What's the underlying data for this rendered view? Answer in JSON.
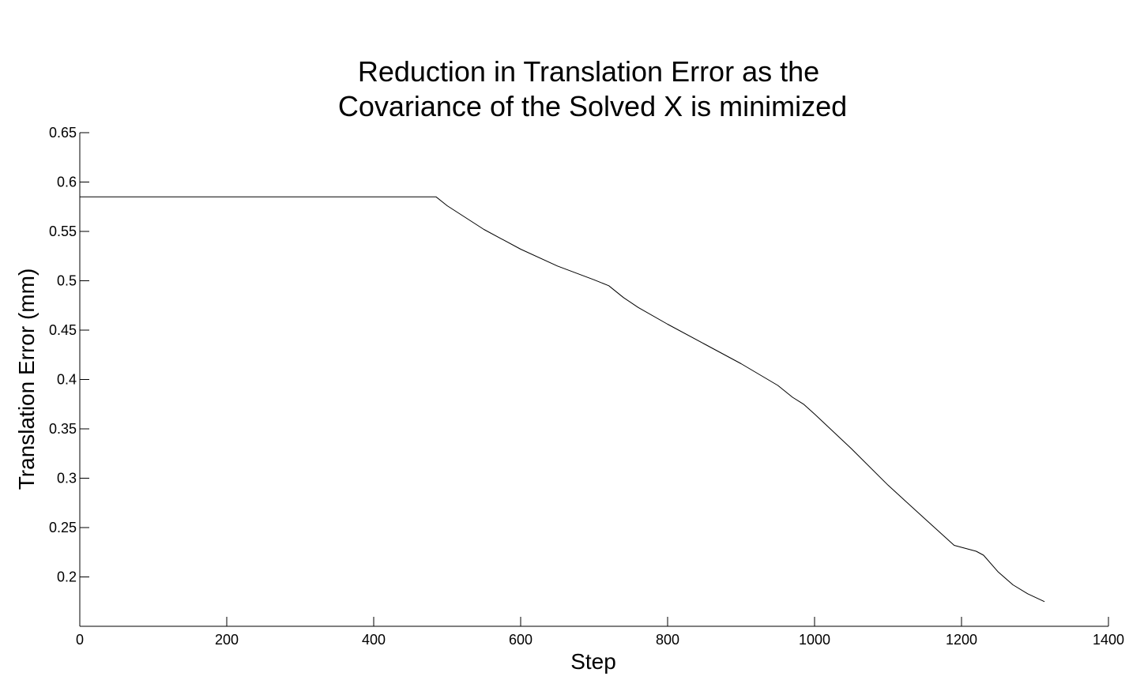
{
  "chart_data": {
    "type": "line",
    "title": [
      "Reduction in Translation Error as the",
      "Covariance of the Solved X is minimized"
    ],
    "xlabel": "Step",
    "ylabel": "Translation Error (mm)",
    "xlim": [
      0,
      1400
    ],
    "ylim": [
      0.15,
      0.65
    ],
    "xticks": [
      0,
      200,
      400,
      600,
      800,
      1000,
      1200,
      1400
    ],
    "xtick_labels": [
      "0",
      "200",
      "400",
      "600",
      "800",
      "1000",
      "1200",
      "1400"
    ],
    "yticks": [
      0.2,
      0.25,
      0.3,
      0.35,
      0.4,
      0.45,
      0.5,
      0.55,
      0.6,
      0.65
    ],
    "ytick_labels": [
      "0.2",
      "0.25",
      "0.3",
      "0.35",
      "0.4",
      "0.45",
      "0.5",
      "0.55",
      "0.6",
      "0.65"
    ],
    "grid": false,
    "series": [
      {
        "color": "#000000",
        "x": [
          0,
          100,
          200,
          300,
          400,
          485,
          500,
          550,
          600,
          650,
          700,
          720,
          740,
          760,
          800,
          850,
          900,
          950,
          970,
          985,
          1000,
          1050,
          1100,
          1150,
          1190,
          1200,
          1220,
          1230,
          1250,
          1270,
          1290,
          1313
        ],
        "y": [
          0.585,
          0.585,
          0.585,
          0.585,
          0.585,
          0.585,
          0.576,
          0.552,
          0.532,
          0.515,
          0.501,
          0.495,
          0.483,
          0.473,
          0.456,
          0.436,
          0.416,
          0.394,
          0.382,
          0.375,
          0.365,
          0.33,
          0.293,
          0.259,
          0.232,
          0.23,
          0.226,
          0.222,
          0.205,
          0.192,
          0.183,
          0.175
        ]
      }
    ]
  }
}
